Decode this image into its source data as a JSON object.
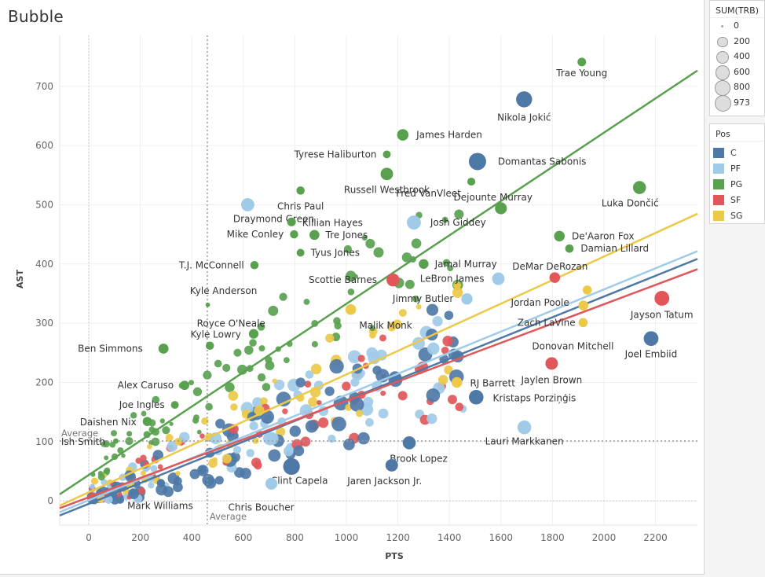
{
  "title": "Bubble",
  "size_legend": {
    "title": "SUM(TRB)",
    "entries": [
      {
        "label": "0",
        "value": 0
      },
      {
        "label": "200",
        "value": 200
      },
      {
        "label": "400",
        "value": 400
      },
      {
        "label": "600",
        "value": 600
      },
      {
        "label": "800",
        "value": 800
      },
      {
        "label": "973",
        "value": 973
      }
    ]
  },
  "color_legend": {
    "title": "Pos",
    "entries": [
      {
        "label": "C",
        "color": "#4e79a7"
      },
      {
        "label": "PF",
        "color": "#a0cbe8"
      },
      {
        "label": "PG",
        "color": "#59a14f"
      },
      {
        "label": "SF",
        "color": "#e15759"
      },
      {
        "label": "SG",
        "color": "#edc948"
      }
    ]
  },
  "chart_data": {
    "type": "scatter",
    "title": "Bubble",
    "xlabel": "PTS",
    "ylabel": "AST",
    "xlim": [
      -113,
      2363
    ],
    "ylim": [
      -41,
      786
    ],
    "xticks": [
      0,
      200,
      400,
      600,
      800,
      1000,
      1200,
      1400,
      1600,
      1800,
      2000,
      2200
    ],
    "yticks": [
      0,
      100,
      200,
      300,
      400,
      500,
      600,
      700
    ],
    "grid": true,
    "size_field": "SUM(TRB)",
    "color_field": "Pos",
    "reference_lines": {
      "x_average": {
        "value": 460,
        "label": "Average"
      },
      "y_average": {
        "value": 101,
        "label": "Average"
      }
    },
    "trend_lines": [
      {
        "pos": "PG",
        "slope": 0.289,
        "intercept": 43.7
      },
      {
        "pos": "SG",
        "slope": 0.199,
        "intercept": 14.5
      },
      {
        "pos": "PF",
        "slope": 0.178,
        "intercept": 1
      },
      {
        "pos": "C",
        "slope": 0.175,
        "intercept": -5
      },
      {
        "pos": "SF",
        "slope": 0.163,
        "intercept": 6
      }
    ],
    "labeled_points": [
      {
        "name": "Trae Young",
        "pos": "PG",
        "pts": 1914,
        "ast": 741,
        "trb": 170
      },
      {
        "name": "Nikola Jokić",
        "pos": "C",
        "pts": 1690,
        "ast": 678,
        "trb": 817
      },
      {
        "name": "James Harden",
        "pos": "PG",
        "pts": 1219,
        "ast": 618,
        "trb": 360
      },
      {
        "name": "Tyrese Haliburton",
        "pos": "PG",
        "pts": 1157,
        "ast": 585,
        "trb": 130
      },
      {
        "name": "Domantas Sabonis",
        "pos": "C",
        "pts": 1509,
        "ast": 573,
        "trb": 973
      },
      {
        "name": "Russell Westbrook",
        "pos": "PG",
        "pts": 1157,
        "ast": 552,
        "trb": 450
      },
      {
        "name": "Fred VanVleet",
        "pos": "PG",
        "pts": 1485,
        "ast": 539,
        "trb": 140
      },
      {
        "name": "Luka Dončić",
        "pos": "PG",
        "pts": 2138,
        "ast": 529,
        "trb": 500
      },
      {
        "name": "Chris Paul",
        "pos": "PG",
        "pts": 822,
        "ast": 524,
        "trb": 150
      },
      {
        "name": "Draymond Green",
        "pos": "PF",
        "pts": 617,
        "ast": 500,
        "trb": 520
      },
      {
        "name": "Josh Giddey",
        "pos": "PF",
        "pts": 1262,
        "ast": 470,
        "trb": 600
      },
      {
        "name": "Killian Hayes",
        "pos": "PG",
        "pts": 787,
        "ast": 471,
        "trb": 180
      },
      {
        "name": "Dejounte Murray",
        "pos": "PG",
        "pts": 1600,
        "ast": 494,
        "trb": 400
      },
      {
        "name": "Mike Conley",
        "pos": "PG",
        "pts": 797,
        "ast": 450,
        "trb": 150
      },
      {
        "name": "Tre Jones",
        "pos": "PG",
        "pts": 876,
        "ast": 449,
        "trb": 250
      },
      {
        "name": "De'Aaron Fox",
        "pos": "PG",
        "pts": 1827,
        "ast": 447,
        "trb": 300
      },
      {
        "name": "Damian Lillard",
        "pos": "PG",
        "pts": 1866,
        "ast": 426,
        "trb": 160
      },
      {
        "name": "Tyus Jones",
        "pos": "PG",
        "pts": 822,
        "ast": 419,
        "trb": 130
      },
      {
        "name": "T.J. McConnell",
        "pos": "PG",
        "pts": 643,
        "ast": 398,
        "trb": 150
      },
      {
        "name": "Jamal Murray",
        "pos": "PG",
        "pts": 1300,
        "ast": 400,
        "trb": 240
      },
      {
        "name": "DeMar DeRozan",
        "pos": "SF",
        "pts": 1809,
        "ast": 377,
        "trb": 300
      },
      {
        "name": "LeBron James",
        "pos": "PF",
        "pts": 1590,
        "ast": 375,
        "trb": 450
      },
      {
        "name": "Scottie Barnes",
        "pos": "SF",
        "pts": 1181,
        "ast": 373,
        "trb": 500
      },
      {
        "name": "Jordan Poole",
        "pos": "SG",
        "pts": 1935,
        "ast": 356,
        "trb": 200
      },
      {
        "name": "Kyle Anderson",
        "pos": "PG",
        "pts": 462,
        "ast": 331,
        "trb": 20
      },
      {
        "name": "Jimmy Butler",
        "pos": "PF",
        "pts": 1468,
        "ast": 341,
        "trb": 350
      },
      {
        "name": "Zach LaVine",
        "pos": "SG",
        "pts": 1920,
        "ast": 330,
        "trb": 250
      },
      {
        "name": "Jayson Tatum",
        "pos": "SF",
        "pts": 2225,
        "ast": 342,
        "trb": 680
      },
      {
        "name": "Malik Monk",
        "pos": "SG",
        "pts": 1017,
        "ast": 323,
        "trb": 300
      },
      {
        "name": "Royce O'Neale",
        "pos": "PG",
        "pts": 470,
        "ast": 262,
        "trb": 150
      },
      {
        "name": "Kyle Lowry",
        "pos": "PG",
        "pts": 640,
        "ast": 282,
        "trb": 230
      },
      {
        "name": "Donovan Mitchell",
        "pos": "SG",
        "pts": 1919,
        "ast": 301,
        "trb": 200
      },
      {
        "name": "Joel Embiid",
        "pos": "C",
        "pts": 2183,
        "ast": 274,
        "trb": 670
      },
      {
        "name": "Ben Simmons",
        "pos": "PG",
        "pts": 290,
        "ast": 257,
        "trb": 260
      },
      {
        "name": "Jaylen Brown",
        "pos": "SF",
        "pts": 1797,
        "ast": 232,
        "trb": 450
      },
      {
        "name": "RJ Barrett",
        "pos": "SG",
        "pts": 1429,
        "ast": 200,
        "trb": 300
      },
      {
        "name": "Alex Caruso",
        "pos": "PG",
        "pts": 372,
        "ast": 195,
        "trb": 210
      },
      {
        "name": "Kristaps Porziņģis",
        "pos": "C",
        "pts": 1504,
        "ast": 175,
        "trb": 650
      },
      {
        "name": "Joe Ingles",
        "pos": "PG",
        "pts": 334,
        "ast": 162,
        "trb": 130
      },
      {
        "name": "Daishen Nix",
        "pos": "PG",
        "pts": 227,
        "ast": 134,
        "trb": 200
      },
      {
        "name": "Lauri Markkanen",
        "pos": "PF",
        "pts": 1691,
        "ast": 124,
        "trb": 570
      },
      {
        "name": "Ish Smith",
        "pos": "PG",
        "pts": 105,
        "ast": 101,
        "trb": 40
      },
      {
        "name": "Brook Lopez",
        "pos": "C",
        "pts": 1244,
        "ast": 98,
        "trb": 500
      },
      {
        "name": "Clint Capela",
        "pos": "C",
        "pts": 787,
        "ast": 58,
        "trb": 900
      },
      {
        "name": "Jaren Jackson Jr.",
        "pos": "C",
        "pts": 1176,
        "ast": 60,
        "trb": 450
      },
      {
        "name": "Chris Boucher",
        "pos": "PF",
        "pts": 709,
        "ast": 29,
        "trb": 400
      },
      {
        "name": "Mark Williams",
        "pos": "C",
        "pts": 280,
        "ast": 30,
        "trb": 150
      }
    ],
    "unlabeled_points_note": "Approximately 350 additional unlabeled player bubbles in the 0–1500 PTS, 0–400 AST range, concentrated along the trend lines."
  }
}
